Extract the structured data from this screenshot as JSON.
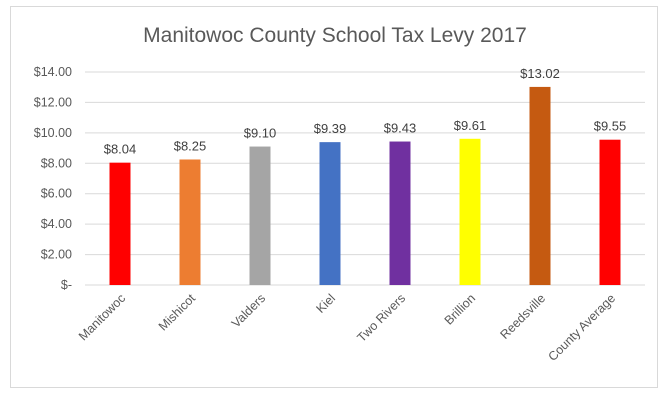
{
  "chart_data": {
    "type": "bar",
    "title": "Manitowoc County School Tax Levy 2017",
    "categories": [
      "Manitowoc",
      "Mishicot",
      "Valders",
      "Kiel",
      "Two Rivers",
      "Brillion",
      "Reedsville",
      "County Average"
    ],
    "values": [
      8.04,
      8.25,
      9.1,
      9.39,
      9.43,
      9.61,
      13.02,
      9.55
    ],
    "data_labels": [
      "$8.04",
      "$8.25",
      "$9.10",
      "$9.39",
      "$9.43",
      "$9.61",
      "$13.02",
      "$9.55"
    ],
    "colors": [
      "#ff0000",
      "#ed7d31",
      "#a5a5a5",
      "#4472c4",
      "#7030a0",
      "#ffff00",
      "#c55a11",
      "#ff0000"
    ],
    "ylim": [
      0,
      14
    ],
    "yticks": [
      0,
      2,
      4,
      6,
      8,
      10,
      12,
      14
    ],
    "ytick_labels": [
      "$-",
      "$2.00",
      "$4.00",
      "$6.00",
      "$8.00",
      "$10.00",
      "$12.00",
      "$14.00"
    ],
    "grid": true,
    "legend": false
  }
}
